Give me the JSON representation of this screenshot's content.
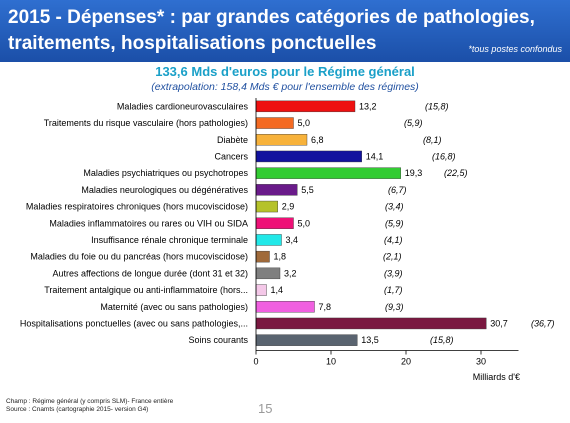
{
  "header": {
    "title_line1": "2015 - Dépenses* : par grandes catégories de pathologies,",
    "title_line2": "traitements, hospitalisations ponctuelles",
    "note": "*tous postes confondus"
  },
  "subtitle": "133,6 Mds d'euros pour le Régime général",
  "extrapolation": "(extrapolation: 158,4 Mds € pour l'ensemble des régimes)",
  "footer": {
    "line1": "Champ : Régime général (y compris SLM)- France entière",
    "line2": "Source : Cnamts (cartographie 2015- version G4)"
  },
  "page_number": "15",
  "chart_data": {
    "type": "bar",
    "orientation": "horizontal",
    "xlabel": "Milliards d'€",
    "xlim": [
      0,
      35
    ],
    "xticks": [
      0,
      10,
      20,
      30
    ],
    "grid": false,
    "categories": [
      "Maladies cardioneurovasculaires",
      "Traitements du risque vasculaire (hors pathologies)",
      "Diabète",
      "Cancers",
      "Maladies psychiatriques ou psychotropes",
      "Maladies neurologiques ou dégénératives",
      "Maladies respiratoires chroniques (hors mucoviscidose)",
      "Maladies inflammatoires ou rares ou VIH ou SIDA",
      "Insuffisance rénale chronique terminale",
      "Maladies du foie ou du pancréas (hors mucoviscidose)",
      "Autres affections de longue durée (dont 31 et 32)",
      "Traitement antalgique ou anti-inflammatoire (hors...",
      "Maternité (avec ou sans pathologies)",
      "Hospitalisations ponctuelles (avec ou sans pathologies,...",
      "Soins courants"
    ],
    "values": [
      13.2,
      5.0,
      6.8,
      14.1,
      19.3,
      5.5,
      2.9,
      5.0,
      3.4,
      1.8,
      3.2,
      1.4,
      7.8,
      30.7,
      13.5
    ],
    "value_labels": [
      "13,2",
      "5,0",
      "6,8",
      "14,1",
      "19,3",
      "5,5",
      "2,9",
      "5,0",
      "3,4",
      "1,8",
      "3,2",
      "1,4",
      "7,8",
      "30,7",
      "13,5"
    ],
    "extrapolated_labels": [
      "(15,8)",
      "(5,9)",
      "(8,1)",
      "(16,8)",
      "(22,5)",
      "(6,7)",
      "(3,4)",
      "(5,9)",
      "(4,1)",
      "(2,1)",
      "(3,9)",
      "(1,7)",
      "(9,3)",
      "(36,7)",
      "(15,8)"
    ],
    "colors": [
      "#ee1111",
      "#f46a22",
      "#f7b23b",
      "#12129e",
      "#33cc33",
      "#6a1b8a",
      "#b5c22a",
      "#ee1177",
      "#22e8e8",
      "#a06a3a",
      "#7f7f7f",
      "#f4c8e8",
      "#f060e0",
      "#7a1840",
      "#5a6470"
    ]
  }
}
